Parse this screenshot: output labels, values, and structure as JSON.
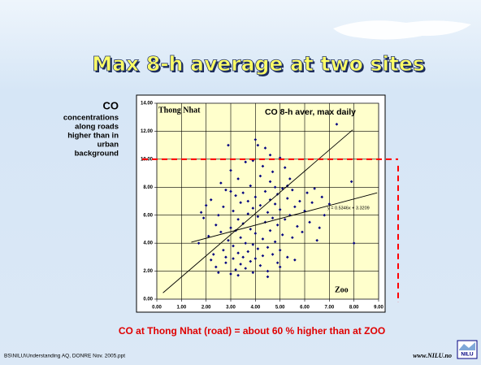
{
  "slide": {
    "title": "Max 8-h average at two sites",
    "note_heading": "CO",
    "note_lines": [
      "concentrations",
      "along roads",
      "higher than in",
      "urban",
      "background"
    ],
    "caption": "CO at Thong Nhat (road) = about 60 % higher than at ZOO",
    "footer": "BS\\NILU\\Understanding AQ, DONRE Nov. 2005.ppt",
    "url": "www.NILU.no",
    "logo": "NILU"
  },
  "chart_data": {
    "type": "scatter",
    "title": "CO 8-h aver, max daily",
    "y_label": "Thong Nhat",
    "x_label": "Zoo",
    "equation": "y = 0.5346x + 3.3209",
    "xlim": [
      0,
      9
    ],
    "ylim": [
      0,
      14
    ],
    "xticks": [
      {
        "value": 0,
        "label": "0.00"
      },
      {
        "value": 1,
        "label": "1.00"
      },
      {
        "value": 2,
        "label": "2.00"
      },
      {
        "value": 3,
        "label": "3.00"
      },
      {
        "value": 4,
        "label": "4.00"
      },
      {
        "value": 5,
        "label": "5.00"
      },
      {
        "value": 6,
        "label": "6.00"
      },
      {
        "value": 7,
        "label": "7.00"
      },
      {
        "value": 8,
        "label": "8.00"
      },
      {
        "value": 9,
        "label": "9.00"
      }
    ],
    "yticks": [
      {
        "value": 0,
        "label": "0.00"
      },
      {
        "value": 2,
        "label": "2.00"
      },
      {
        "value": 4,
        "label": "4.00"
      },
      {
        "value": 6,
        "label": "6.00"
      },
      {
        "value": 8,
        "label": "8.00"
      },
      {
        "value": 10,
        "label": "10.00"
      },
      {
        "value": 12,
        "label": "12.00"
      },
      {
        "value": 14,
        "label": "14.00"
      }
    ],
    "grid": true,
    "threshold": 10,
    "threshold_color": "#ff0000",
    "lines": [
      {
        "x": [
          0.25,
          7.95
        ],
        "y": [
          0.45,
          12.1
        ]
      },
      {
        "x": [
          1.4,
          8.94
        ],
        "y": [
          4.07,
          7.6
        ]
      }
    ],
    "series": [
      {
        "color": "#000080",
        "x": [
          1.7,
          1.8,
          1.9,
          2.0,
          2.1,
          2.2,
          2.3,
          2.4,
          2.4,
          2.5,
          2.5,
          2.6,
          2.6,
          2.7,
          2.7,
          2.8,
          2.8,
          2.9,
          2.9,
          3.0,
          3.0,
          3.0,
          3.1,
          3.1,
          3.1,
          3.2,
          3.2,
          3.2,
          3.3,
          3.3,
          3.3,
          3.4,
          3.4,
          3.4,
          3.5,
          3.5,
          3.5,
          3.6,
          3.6,
          3.6,
          3.7,
          3.7,
          3.7,
          3.8,
          3.8,
          3.8,
          3.9,
          3.9,
          3.9,
          4.0,
          4.0,
          4.0,
          4.0,
          4.1,
          4.1,
          4.1,
          4.2,
          4.2,
          4.2,
          4.3,
          4.3,
          4.3,
          4.4,
          4.4,
          4.4,
          4.5,
          4.5,
          4.5,
          4.6,
          4.6,
          4.6,
          4.7,
          4.7,
          4.7,
          4.8,
          4.8,
          4.8,
          4.9,
          4.9,
          4.9,
          5.0,
          5.0,
          5.0,
          5.1,
          5.1,
          5.2,
          5.2,
          5.3,
          5.3,
          5.4,
          5.4,
          5.5,
          5.5,
          5.6,
          5.6,
          5.7,
          5.8,
          5.9,
          6.0,
          6.1,
          6.2,
          6.3,
          6.5,
          6.7,
          6.8,
          7.0,
          7.3,
          7.9,
          8.0,
          6.4,
          6.6,
          2.8,
          3.3,
          4.5,
          5.0,
          3.9,
          3.0,
          2.2,
          4.6,
          5.3
        ],
        "values": [
          4.0,
          6.2,
          5.8,
          6.7,
          4.5,
          7.1,
          3.2,
          5.3,
          2.3,
          6.0,
          1.9,
          4.8,
          8.3,
          3.5,
          6.6,
          2.6,
          7.8,
          4.2,
          11.0,
          1.8,
          5.1,
          9.2,
          2.9,
          6.3,
          3.8,
          7.4,
          2.1,
          4.9,
          3.3,
          5.7,
          8.6,
          2.5,
          6.9,
          4.4,
          3.0,
          7.6,
          5.4,
          2.2,
          9.8,
          4.0,
          6.1,
          3.4,
          7.0,
          2.7,
          5.0,
          8.1,
          3.9,
          6.5,
          1.9,
          11.4,
          4.7,
          7.3,
          2.9,
          11.0,
          5.9,
          3.6,
          8.8,
          2.4,
          6.7,
          4.3,
          9.5,
          3.1,
          10.8,
          5.5,
          7.7,
          3.7,
          6.2,
          2.0,
          8.4,
          4.9,
          7.1,
          3.2,
          9.1,
          5.8,
          6.8,
          4.1,
          8.0,
          2.6,
          7.5,
          5.3,
          10.1,
          6.4,
          3.5,
          7.9,
          4.6,
          9.4,
          5.7,
          7.2,
          3.0,
          8.6,
          6.0,
          4.4,
          7.8,
          6.6,
          2.8,
          5.2,
          7.0,
          4.8,
          6.3,
          7.6,
          5.5,
          6.9,
          4.2,
          7.3,
          6.0,
          6.8,
          12.5,
          8.4,
          4.0,
          7.9,
          5.1,
          3.0,
          1.7,
          1.6,
          2.3,
          9.9,
          7.7,
          2.8,
          10.3,
          8.1
        ]
      }
    ]
  }
}
